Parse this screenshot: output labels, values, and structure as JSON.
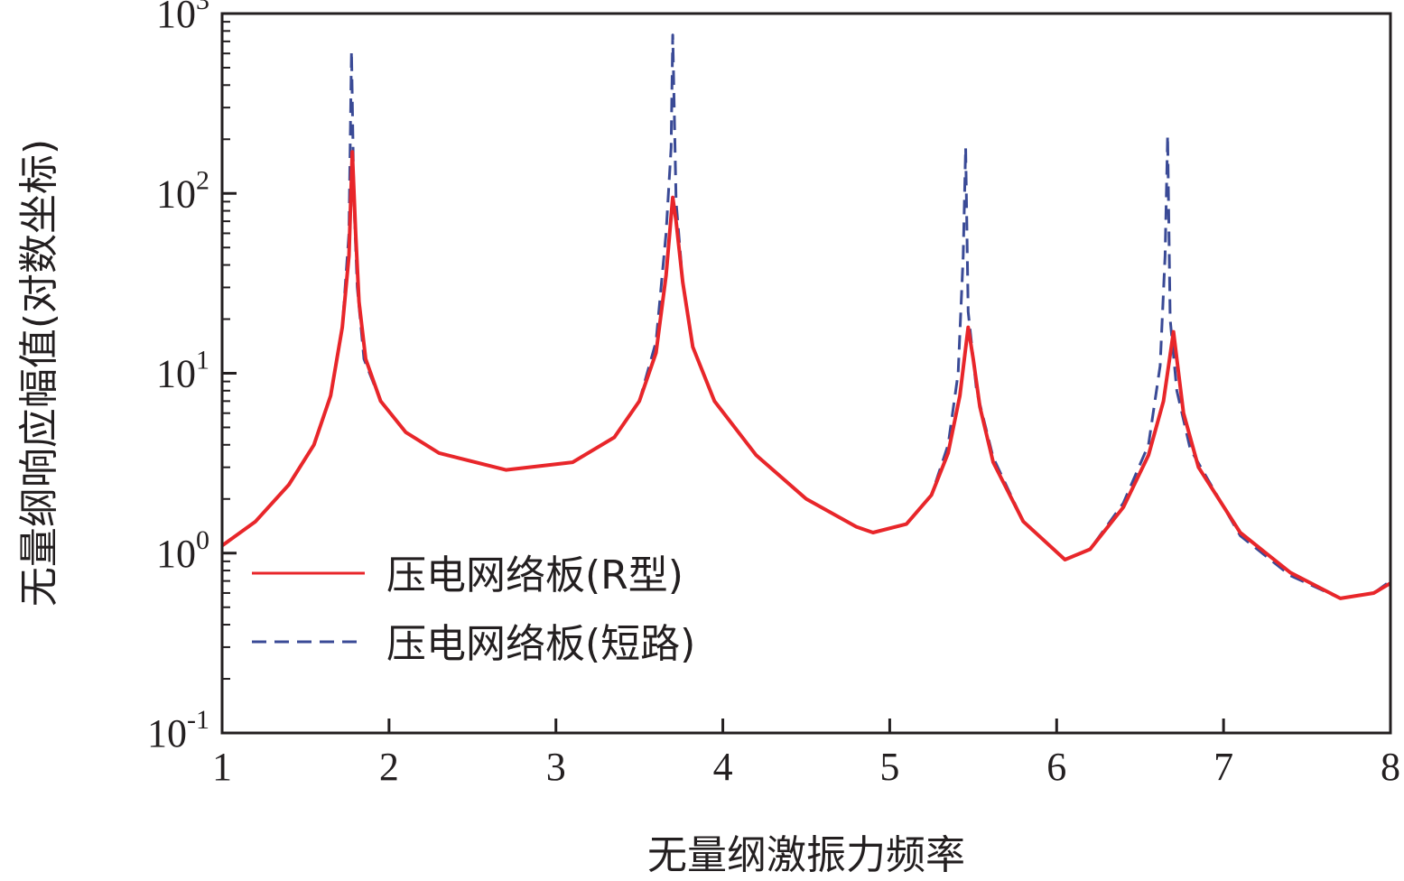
{
  "chart_data": {
    "type": "line",
    "title": "",
    "xlabel": "无量纲激振力频率",
    "ylabel": "无量纲响应幅值(对数坐标)",
    "xlim": [
      1,
      8
    ],
    "ylim": [
      0.1,
      1000
    ],
    "yscale": "log",
    "grid": false,
    "legend_position": "lower-left",
    "x_ticks": [
      {
        "value": 1,
        "label": "1"
      },
      {
        "value": 2,
        "label": "2"
      },
      {
        "value": 3,
        "label": "3"
      },
      {
        "value": 4,
        "label": "4"
      },
      {
        "value": 5,
        "label": "5"
      },
      {
        "value": 6,
        "label": "6"
      },
      {
        "value": 7,
        "label": "7"
      },
      {
        "value": 8,
        "label": "8"
      }
    ],
    "y_ticks": [
      {
        "value": 0.1,
        "base": "10",
        "exp": "-1"
      },
      {
        "value": 1,
        "base": "10",
        "exp": "0"
      },
      {
        "value": 10,
        "base": "10",
        "exp": "1"
      },
      {
        "value": 100,
        "base": "10",
        "exp": "2"
      },
      {
        "value": 1000,
        "base": "10",
        "exp": "3"
      }
    ],
    "series": [
      {
        "name": "压电网络板(R型)",
        "color": "#e8262a",
        "style": "solid",
        "x": [
          1.0,
          1.2,
          1.4,
          1.55,
          1.65,
          1.72,
          1.76,
          1.78,
          1.8,
          1.82,
          1.86,
          1.95,
          2.1,
          2.3,
          2.7,
          3.1,
          3.35,
          3.5,
          3.6,
          3.66,
          3.7,
          3.72,
          3.76,
          3.82,
          3.95,
          4.2,
          4.5,
          4.8,
          4.9,
          5.1,
          5.25,
          5.35,
          5.42,
          5.47,
          5.5,
          5.54,
          5.62,
          5.8,
          6.05,
          6.2,
          6.4,
          6.55,
          6.64,
          6.7,
          6.72,
          6.76,
          6.85,
          7.1,
          7.4,
          7.7,
          7.9,
          8.0
        ],
        "y": [
          1.1,
          1.5,
          2.4,
          4.0,
          7.5,
          18,
          45,
          170,
          60,
          25,
          12,
          7.0,
          4.7,
          3.6,
          2.9,
          3.2,
          4.4,
          7.0,
          13,
          35,
          95,
          70,
          32,
          14,
          7.0,
          3.5,
          2.0,
          1.4,
          1.3,
          1.45,
          2.1,
          3.6,
          7.5,
          18,
          12,
          6.5,
          3.2,
          1.5,
          0.92,
          1.05,
          1.8,
          3.5,
          7.0,
          17,
          12,
          6.0,
          3.0,
          1.3,
          0.78,
          0.56,
          0.6,
          0.68
        ]
      },
      {
        "name": "压电网络板(短路)",
        "color": "#3a4a96",
        "style": "dashed",
        "x": [
          1.0,
          1.2,
          1.4,
          1.55,
          1.65,
          1.72,
          1.76,
          1.775,
          1.79,
          1.81,
          1.85,
          1.95,
          2.1,
          2.3,
          2.7,
          3.1,
          3.35,
          3.5,
          3.6,
          3.66,
          3.69,
          3.7,
          3.72,
          3.76,
          3.82,
          3.95,
          4.2,
          4.5,
          4.8,
          4.9,
          5.1,
          5.25,
          5.35,
          5.41,
          5.44,
          5.455,
          5.47,
          5.52,
          5.62,
          5.8,
          6.05,
          6.2,
          6.4,
          6.55,
          6.62,
          6.65,
          6.665,
          6.68,
          6.72,
          6.8,
          7.1,
          7.4,
          7.7,
          7.9,
          8.0
        ],
        "y": [
          1.1,
          1.5,
          2.4,
          4.0,
          7.5,
          18,
          60,
          620,
          90,
          30,
          12,
          7.0,
          4.7,
          3.6,
          2.9,
          3.2,
          4.4,
          7.0,
          15,
          60,
          180,
          760,
          90,
          32,
          14,
          7.0,
          3.5,
          2.0,
          1.4,
          1.3,
          1.45,
          2.1,
          4.0,
          10,
          45,
          180,
          22,
          8.0,
          3.4,
          1.5,
          0.92,
          1.05,
          1.9,
          4.0,
          11,
          45,
          210,
          20,
          8.0,
          3.8,
          1.25,
          0.75,
          0.56,
          0.6,
          0.7
        ]
      }
    ]
  }
}
